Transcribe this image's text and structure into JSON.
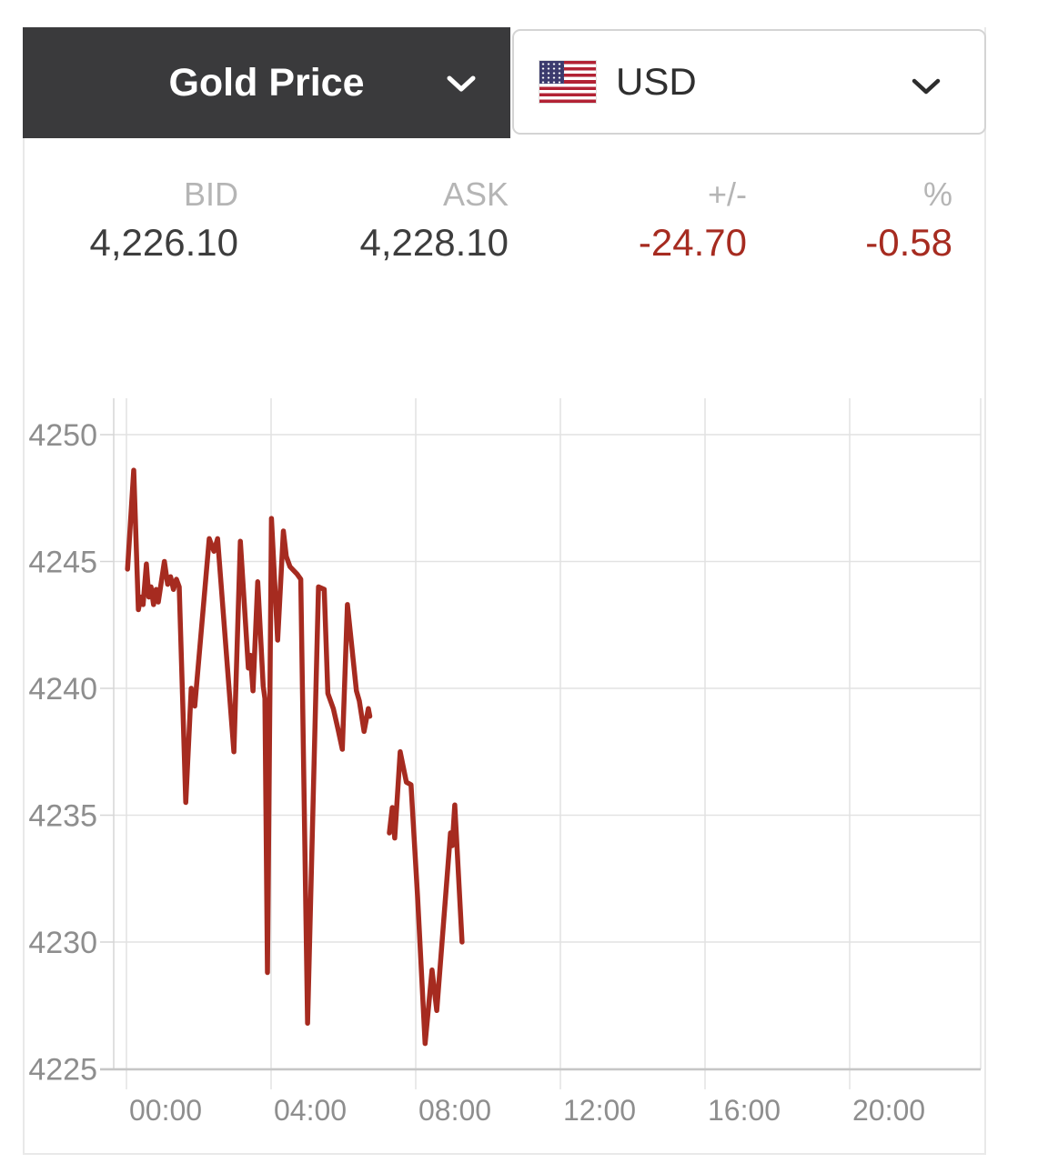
{
  "header": {
    "metal_selector": {
      "label": "Gold Price"
    },
    "currency_selector": {
      "label": "USD",
      "flag": "us-flag"
    }
  },
  "quote": {
    "columns": [
      {
        "label": "BID",
        "value": "4,226.10",
        "negative": false
      },
      {
        "label": "ASK",
        "value": "4,228.10",
        "negative": false
      },
      {
        "label": "+/-",
        "value": "-24.70",
        "negative": true
      },
      {
        "label": "%",
        "value": "-0.58",
        "negative": true
      }
    ]
  },
  "chart_data": {
    "type": "line",
    "x_axis": {
      "unit": "time-of-day",
      "tick_labels": [
        "00:00",
        "04:00",
        "08:00",
        "12:00",
        "16:00",
        "20:00"
      ],
      "tick_hours": [
        0,
        4,
        8,
        12,
        16,
        20
      ],
      "range_hours": [
        -0.63,
        23.62
      ]
    },
    "y_axis": {
      "tick_values": [
        4250,
        4245,
        4240,
        4235,
        4230,
        4225
      ],
      "range": [
        4225,
        4250
      ]
    },
    "grid": true,
    "legend": false,
    "series": [
      {
        "name": "Gold Price (USD)",
        "color": "#a62b20",
        "segments": [
          [
            [
              0.03,
              4244.7
            ],
            [
              0.2,
              4248.6
            ],
            [
              0.33,
              4243.1
            ],
            [
              0.4,
              4243.6
            ],
            [
              0.46,
              4243.3
            ],
            [
              0.55,
              4244.9
            ],
            [
              0.62,
              4243.6
            ],
            [
              0.68,
              4244.0
            ],
            [
              0.75,
              4243.3
            ],
            [
              0.82,
              4243.9
            ],
            [
              0.88,
              4243.4
            ],
            [
              1.05,
              4245.0
            ],
            [
              1.14,
              4244.1
            ],
            [
              1.22,
              4244.4
            ],
            [
              1.3,
              4243.9
            ],
            [
              1.38,
              4244.3
            ],
            [
              1.46,
              4244.0
            ],
            [
              1.64,
              4235.5
            ],
            [
              1.79,
              4240.0
            ],
            [
              1.89,
              4239.3
            ],
            [
              2.29,
              4245.9
            ],
            [
              2.42,
              4245.4
            ],
            [
              2.52,
              4245.9
            ],
            [
              2.97,
              4237.5
            ],
            [
              3.15,
              4245.8
            ],
            [
              3.37,
              4240.8
            ],
            [
              3.43,
              4241.3
            ],
            [
              3.5,
              4239.9
            ],
            [
              3.63,
              4244.2
            ],
            [
              3.78,
              4240.1
            ],
            [
              3.83,
              4239.6
            ],
            [
              3.9,
              4228.8
            ],
            [
              4.01,
              4246.7
            ],
            [
              4.18,
              4241.9
            ],
            [
              4.34,
              4246.2
            ],
            [
              4.42,
              4245.2
            ],
            [
              4.52,
              4244.8
            ],
            [
              4.72,
              4244.5
            ],
            [
              4.82,
              4244.3
            ],
            [
              5.01,
              4226.8
            ],
            [
              5.31,
              4244.0
            ],
            [
              5.47,
              4243.9
            ],
            [
              5.57,
              4239.8
            ],
            [
              5.72,
              4239.2
            ],
            [
              5.85,
              4238.4
            ],
            [
              5.97,
              4237.6
            ],
            [
              6.11,
              4243.3
            ],
            [
              6.36,
              4239.9
            ],
            [
              6.44,
              4239.5
            ],
            [
              6.57,
              4238.3
            ],
            [
              6.69,
              4239.2
            ],
            [
              6.73,
              4238.9
            ]
          ],
          [
            [
              7.27,
              4234.3
            ],
            [
              7.35,
              4235.3
            ],
            [
              7.42,
              4234.1
            ],
            [
              7.57,
              4237.5
            ],
            [
              7.74,
              4236.3
            ],
            [
              7.87,
              4236.2
            ],
            [
              8.05,
              4231.8
            ],
            [
              8.26,
              4226.0
            ],
            [
              8.45,
              4228.9
            ],
            [
              8.58,
              4227.3
            ],
            [
              8.96,
              4234.3
            ],
            [
              9.01,
              4233.8
            ],
            [
              9.08,
              4235.4
            ],
            [
              9.28,
              4230.0
            ]
          ]
        ]
      }
    ]
  },
  "colors": {
    "accent_red": "#a62b20",
    "header_bg": "#3a3a3c",
    "label_gray": "#b5b5b5",
    "value_dark": "#3d3d3d",
    "axis_label": "#8e8e8e",
    "gridline": "#e2e2e2",
    "plot_border": "#d6d6d6",
    "card_border": "#e9e9e9",
    "select_border": "#d4d4d4"
  }
}
